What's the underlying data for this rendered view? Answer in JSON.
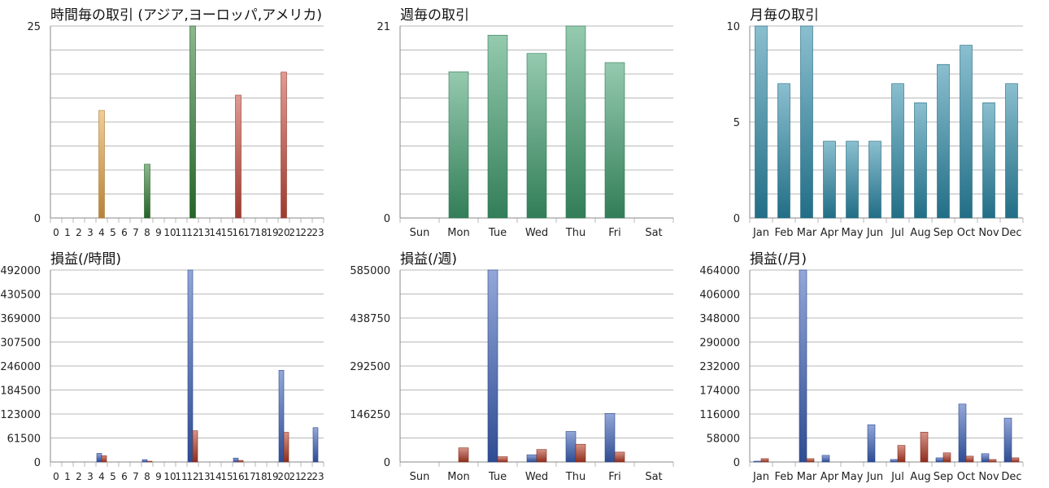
{
  "colors": {
    "hourly_trades": [
      "#e3a445",
      "#2e7d32",
      "#c44a3b"
    ],
    "weekly_trades": "#3f9e6e",
    "monthly_trades": "#2a8aa8",
    "profit": "#3a5fb8",
    "loss": "#b33a25"
  },
  "chart_data": [
    {
      "id": "hourly-trades",
      "type": "bar",
      "title": "時間毎の取引 (アジア,ヨーロッパ,アメリカ)",
      "categories": [
        "0",
        "1",
        "2",
        "3",
        "4",
        "5",
        "6",
        "7",
        "8",
        "9",
        "10",
        "11",
        "12",
        "13",
        "14",
        "15",
        "16",
        "17",
        "18",
        "19",
        "20",
        "21",
        "22",
        "23"
      ],
      "series": [
        {
          "values": [
            0,
            0,
            0,
            0,
            14,
            0,
            0,
            0,
            0,
            0,
            0,
            0,
            0,
            0,
            0,
            0,
            0,
            0,
            0,
            0,
            0,
            0,
            0,
            0
          ]
        },
        {
          "values": [
            0,
            0,
            0,
            0,
            0,
            0,
            0,
            0,
            7,
            0,
            0,
            0,
            25,
            0,
            0,
            0,
            0,
            0,
            0,
            0,
            0,
            0,
            0,
            0
          ]
        },
        {
          "values": [
            0,
            0,
            0,
            0,
            0,
            0,
            0,
            0,
            0,
            0,
            0,
            0,
            0,
            0,
            0,
            0,
            16,
            0,
            0,
            0,
            19,
            0,
            0,
            0
          ]
        }
      ],
      "ylim": [
        0,
        25
      ],
      "yticks": [
        "0",
        "25"
      ],
      "grid": true
    },
    {
      "id": "weekly-trades",
      "type": "bar",
      "title": "週毎の取引",
      "categories": [
        "Sun",
        "Mon",
        "Tue",
        "Wed",
        "Thu",
        "Fri",
        "Sat"
      ],
      "values": [
        0,
        16,
        20,
        18,
        21,
        17,
        0
      ],
      "ylim": [
        0,
        21
      ],
      "yticks": [
        "0",
        "21"
      ],
      "grid": true
    },
    {
      "id": "monthly-trades",
      "type": "bar",
      "title": "月毎の取引",
      "categories": [
        "Jan",
        "Feb",
        "Mar",
        "Apr",
        "May",
        "Jun",
        "Jul",
        "Aug",
        "Sep",
        "Oct",
        "Nov",
        "Dec"
      ],
      "values": [
        10,
        7,
        10,
        4,
        4,
        4,
        7,
        6,
        8,
        9,
        6,
        7
      ],
      "ylim": [
        0,
        10
      ],
      "yticks": [
        "0",
        "5",
        "10"
      ],
      "grid": true
    },
    {
      "id": "hourly-pnl",
      "type": "bar",
      "title": "損益(/時間)",
      "categories": [
        "0",
        "1",
        "2",
        "3",
        "4",
        "5",
        "6",
        "7",
        "8",
        "9",
        "10",
        "11",
        "12",
        "13",
        "14",
        "15",
        "16",
        "17",
        "18",
        "19",
        "20",
        "21",
        "22",
        "23"
      ],
      "series": [
        {
          "values": [
            0,
            0,
            0,
            0,
            22000,
            0,
            0,
            0,
            6000,
            0,
            0,
            0,
            492000,
            0,
            0,
            0,
            10000,
            0,
            0,
            0,
            235000,
            0,
            0,
            88000
          ]
        },
        {
          "values": [
            0,
            0,
            0,
            0,
            16000,
            0,
            0,
            0,
            2000,
            0,
            0,
            0,
            80000,
            0,
            0,
            0,
            4000,
            0,
            0,
            0,
            76000,
            0,
            0,
            0
          ]
        }
      ],
      "ylim": [
        0,
        492000
      ],
      "yticks": [
        "0",
        "61500",
        "123000",
        "184500",
        "246000",
        "307500",
        "369000",
        "430500",
        "492000"
      ],
      "grid": true
    },
    {
      "id": "weekly-pnl",
      "type": "bar",
      "title": "損益(/週)",
      "categories": [
        "Sun",
        "Mon",
        "Tue",
        "Wed",
        "Thu",
        "Fri",
        "Sat"
      ],
      "series": [
        {
          "values": [
            0,
            0,
            585000,
            22000,
            93000,
            148000,
            0
          ]
        },
        {
          "values": [
            0,
            43000,
            16000,
            38000,
            54000,
            30000,
            0
          ]
        }
      ],
      "ylim": [
        0,
        585000
      ],
      "yticks": [
        "0",
        "146250",
        "292500",
        "438750",
        "585000"
      ],
      "grid": true
    },
    {
      "id": "monthly-pnl",
      "type": "bar",
      "title": "損益(/月)",
      "categories": [
        "Jan",
        "Feb",
        "Mar",
        "Apr",
        "May",
        "Jun",
        "Jul",
        "Aug",
        "Sep",
        "Oct",
        "Nov",
        "Dec"
      ],
      "series": [
        {
          "values": [
            2000,
            0,
            464000,
            16000,
            0,
            90000,
            6000,
            0,
            10000,
            140000,
            20000,
            106000
          ]
        },
        {
          "values": [
            8000,
            0,
            8000,
            0,
            0,
            0,
            40000,
            72000,
            22000,
            14000,
            6000,
            10000
          ]
        }
      ],
      "ylim": [
        0,
        464000
      ],
      "yticks": [
        "0",
        "58000",
        "116000",
        "174000",
        "232000",
        "290000",
        "348000",
        "406000",
        "464000"
      ],
      "grid": true
    }
  ]
}
